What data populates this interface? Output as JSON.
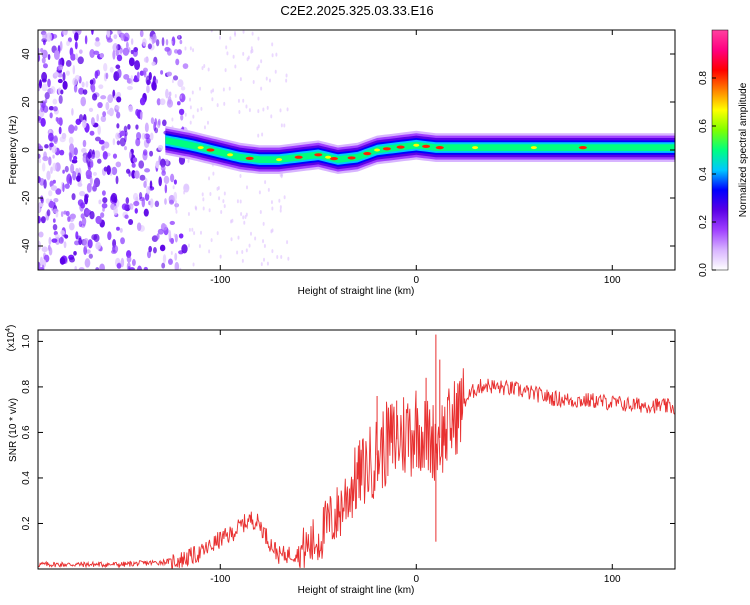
{
  "title": "C2E2.2025.325.03.33.E16",
  "chart_data": [
    {
      "type": "heatmap",
      "xlabel": "Height of straight line (km)",
      "ylabel": "Frequency (Hz)",
      "xlim": [
        -193,
        132
      ],
      "ylim": [
        -50,
        50
      ],
      "xticks": [
        -100,
        0,
        100
      ],
      "xtick_labels": [
        "-100",
        "0",
        "100"
      ],
      "yticks": [
        -40,
        -20,
        0,
        20,
        40
      ],
      "ytick_labels": [
        "-40",
        "-20",
        "0",
        "20",
        "40"
      ],
      "colorbar": {
        "label": "Normalized spectral amplitude",
        "range": [
          0,
          1
        ],
        "ticks": [
          0,
          0.2,
          0.4,
          0.6,
          0.8
        ],
        "tick_labels": [
          "0.0",
          "0.2",
          "0.4",
          "0.6",
          "0.8"
        ],
        "colors": [
          "#ffffff",
          "#d8b4ff",
          "#a040ff",
          "#5a00e6",
          "#0000ff",
          "#00c8ff",
          "#00ff80",
          "#80ff00",
          "#ffff00",
          "#ff8000",
          "#ff0000",
          "#ff0080",
          "#ff40a0"
        ]
      },
      "signal_track": {
        "x": [
          -128,
          -115,
          -100,
          -90,
          -80,
          -70,
          -60,
          -50,
          -40,
          -30,
          -20,
          -10,
          0,
          10,
          20,
          40,
          60,
          80,
          100,
          132
        ],
        "freq": [
          4,
          2,
          -1,
          -3,
          -4,
          -4,
          -3,
          -2,
          -4,
          -3,
          0,
          1,
          2,
          1,
          1,
          1,
          1,
          1,
          1,
          1
        ]
      },
      "noise_region": {
        "x_from": -193,
        "x_to": -125
      }
    },
    {
      "type": "line",
      "xlabel": "Height of straight line (km)",
      "ylabel": "SNR (10 * v/v)",
      "multiplier_label": "(x10",
      "multiplier_exp": "4",
      "multiplier_close": ")",
      "xlim": [
        -193,
        132
      ],
      "ylim": [
        0,
        1.05
      ],
      "xticks": [
        -100,
        0,
        100
      ],
      "xtick_labels": [
        "-100",
        "0",
        "100"
      ],
      "yticks": [
        0.2,
        0.4,
        0.6,
        0.8,
        1.0
      ],
      "ytick_labels": [
        "0.2",
        "0.4",
        "0.6",
        "0.8",
        "1.0"
      ],
      "series": [
        {
          "name": "SNR",
          "color": "#e83030",
          "x": [
            -193,
            -150,
            -130,
            -120,
            -110,
            -100,
            -95,
            -88,
            -84,
            -80,
            -75,
            -70,
            -60,
            -50,
            -45,
            -40,
            -35,
            -30,
            -25,
            -20,
            -15,
            -10,
            -5,
            0,
            5,
            10,
            15,
            20,
            25,
            30,
            35,
            40,
            50,
            60,
            70,
            80,
            90,
            100,
            110,
            120,
            132
          ],
          "y": [
            0.02,
            0.02,
            0.03,
            0.04,
            0.07,
            0.13,
            0.15,
            0.2,
            0.22,
            0.2,
            0.12,
            0.06,
            0.07,
            0.13,
            0.2,
            0.24,
            0.33,
            0.4,
            0.45,
            0.5,
            0.55,
            0.57,
            0.6,
            0.62,
            0.58,
            0.56,
            0.6,
            0.67,
            0.74,
            0.79,
            0.81,
            0.8,
            0.79,
            0.77,
            0.75,
            0.74,
            0.74,
            0.73,
            0.72,
            0.72,
            0.71
          ],
          "spikes": [
            {
              "x": -20,
              "y": 0.76
            },
            {
              "x": -10,
              "y": 0.74
            },
            {
              "x": 5,
              "y": 0.84
            },
            {
              "x": 10,
              "y": 1.03
            },
            {
              "x": 12,
              "y": 0.92
            },
            {
              "x": 10,
              "y": 0.12
            }
          ]
        }
      ]
    }
  ]
}
